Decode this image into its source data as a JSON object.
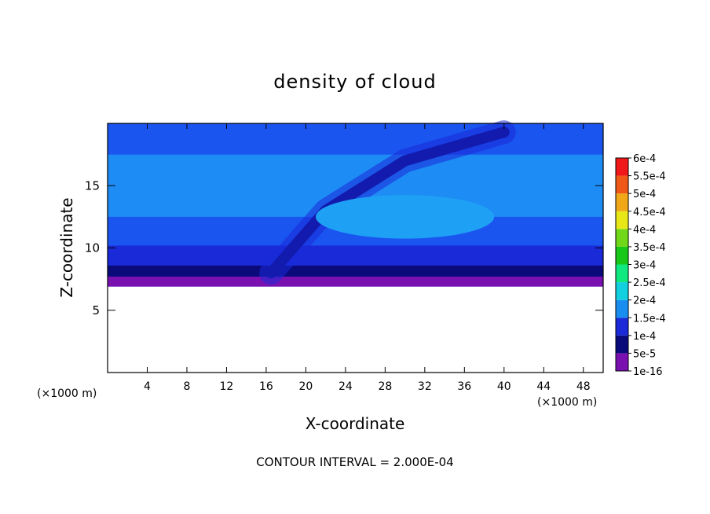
{
  "chart_data": {
    "type": "heatmap",
    "title": "density of cloud",
    "xlabel": "X-coordinate",
    "ylabel": "Z-coordinate",
    "x_unit_label": "(×1000 m)",
    "y_unit_label": "(×1000 m)",
    "xlim": [
      0,
      50
    ],
    "ylim": [
      0,
      20
    ],
    "x_ticks": [
      "4",
      "8",
      "12",
      "16",
      "20",
      "24",
      "28",
      "32",
      "36",
      "40",
      "44",
      "48"
    ],
    "y_ticks": [
      "5",
      "10",
      "15"
    ],
    "footer": "CONTOUR INTERVAL = 2.000E-04",
    "grid": false,
    "legend_position": "right",
    "colorbar": {
      "labels": [
        "1e-16",
        "5e-5",
        "1e-4",
        "1.5e-4",
        "2e-4",
        "2.5e-4",
        "3e-4",
        "3.5e-4",
        "4e-4",
        "4.5e-4",
        "5e-4",
        "5.5e-4",
        "6e-4"
      ],
      "colors": [
        "#7a10b0",
        "#0a0a7a",
        "#1a2ad8",
        "#1a8ef0",
        "#12d0e0",
        "#10e880",
        "#18c818",
        "#70d818",
        "#e8e818",
        "#f0a818",
        "#f05818",
        "#f01818",
        "#f08080"
      ]
    },
    "field": {
      "background_color": "#1a55f0",
      "region_bottom_z": 6.9,
      "layers": [
        {
          "z_from": 6.9,
          "z_to": 7.7,
          "value": "1e-16",
          "color": "#7a10b0"
        },
        {
          "z_from": 7.7,
          "z_to": 8.6,
          "value": "5e-5",
          "color": "#0a0a7a"
        },
        {
          "z_from": 8.6,
          "z_to": 10.2,
          "value": "1e-4",
          "color": "#1a2ad8"
        },
        {
          "z_from": 10.2,
          "z_to": 12.5,
          "value": "1e-4",
          "color": "#1a55f0"
        },
        {
          "z_from": 12.5,
          "z_to": 17.5,
          "value": "1.5e-4",
          "color": "#1e8cf5"
        },
        {
          "z_from": 17.5,
          "z_to": 20,
          "value": "1e-4",
          "color": "#1a55f0"
        }
      ],
      "dark_band_ridge": [
        [
          16.5,
          8
        ],
        [
          22,
          13
        ],
        [
          30,
          17
        ],
        [
          40,
          19.3
        ]
      ]
    }
  }
}
